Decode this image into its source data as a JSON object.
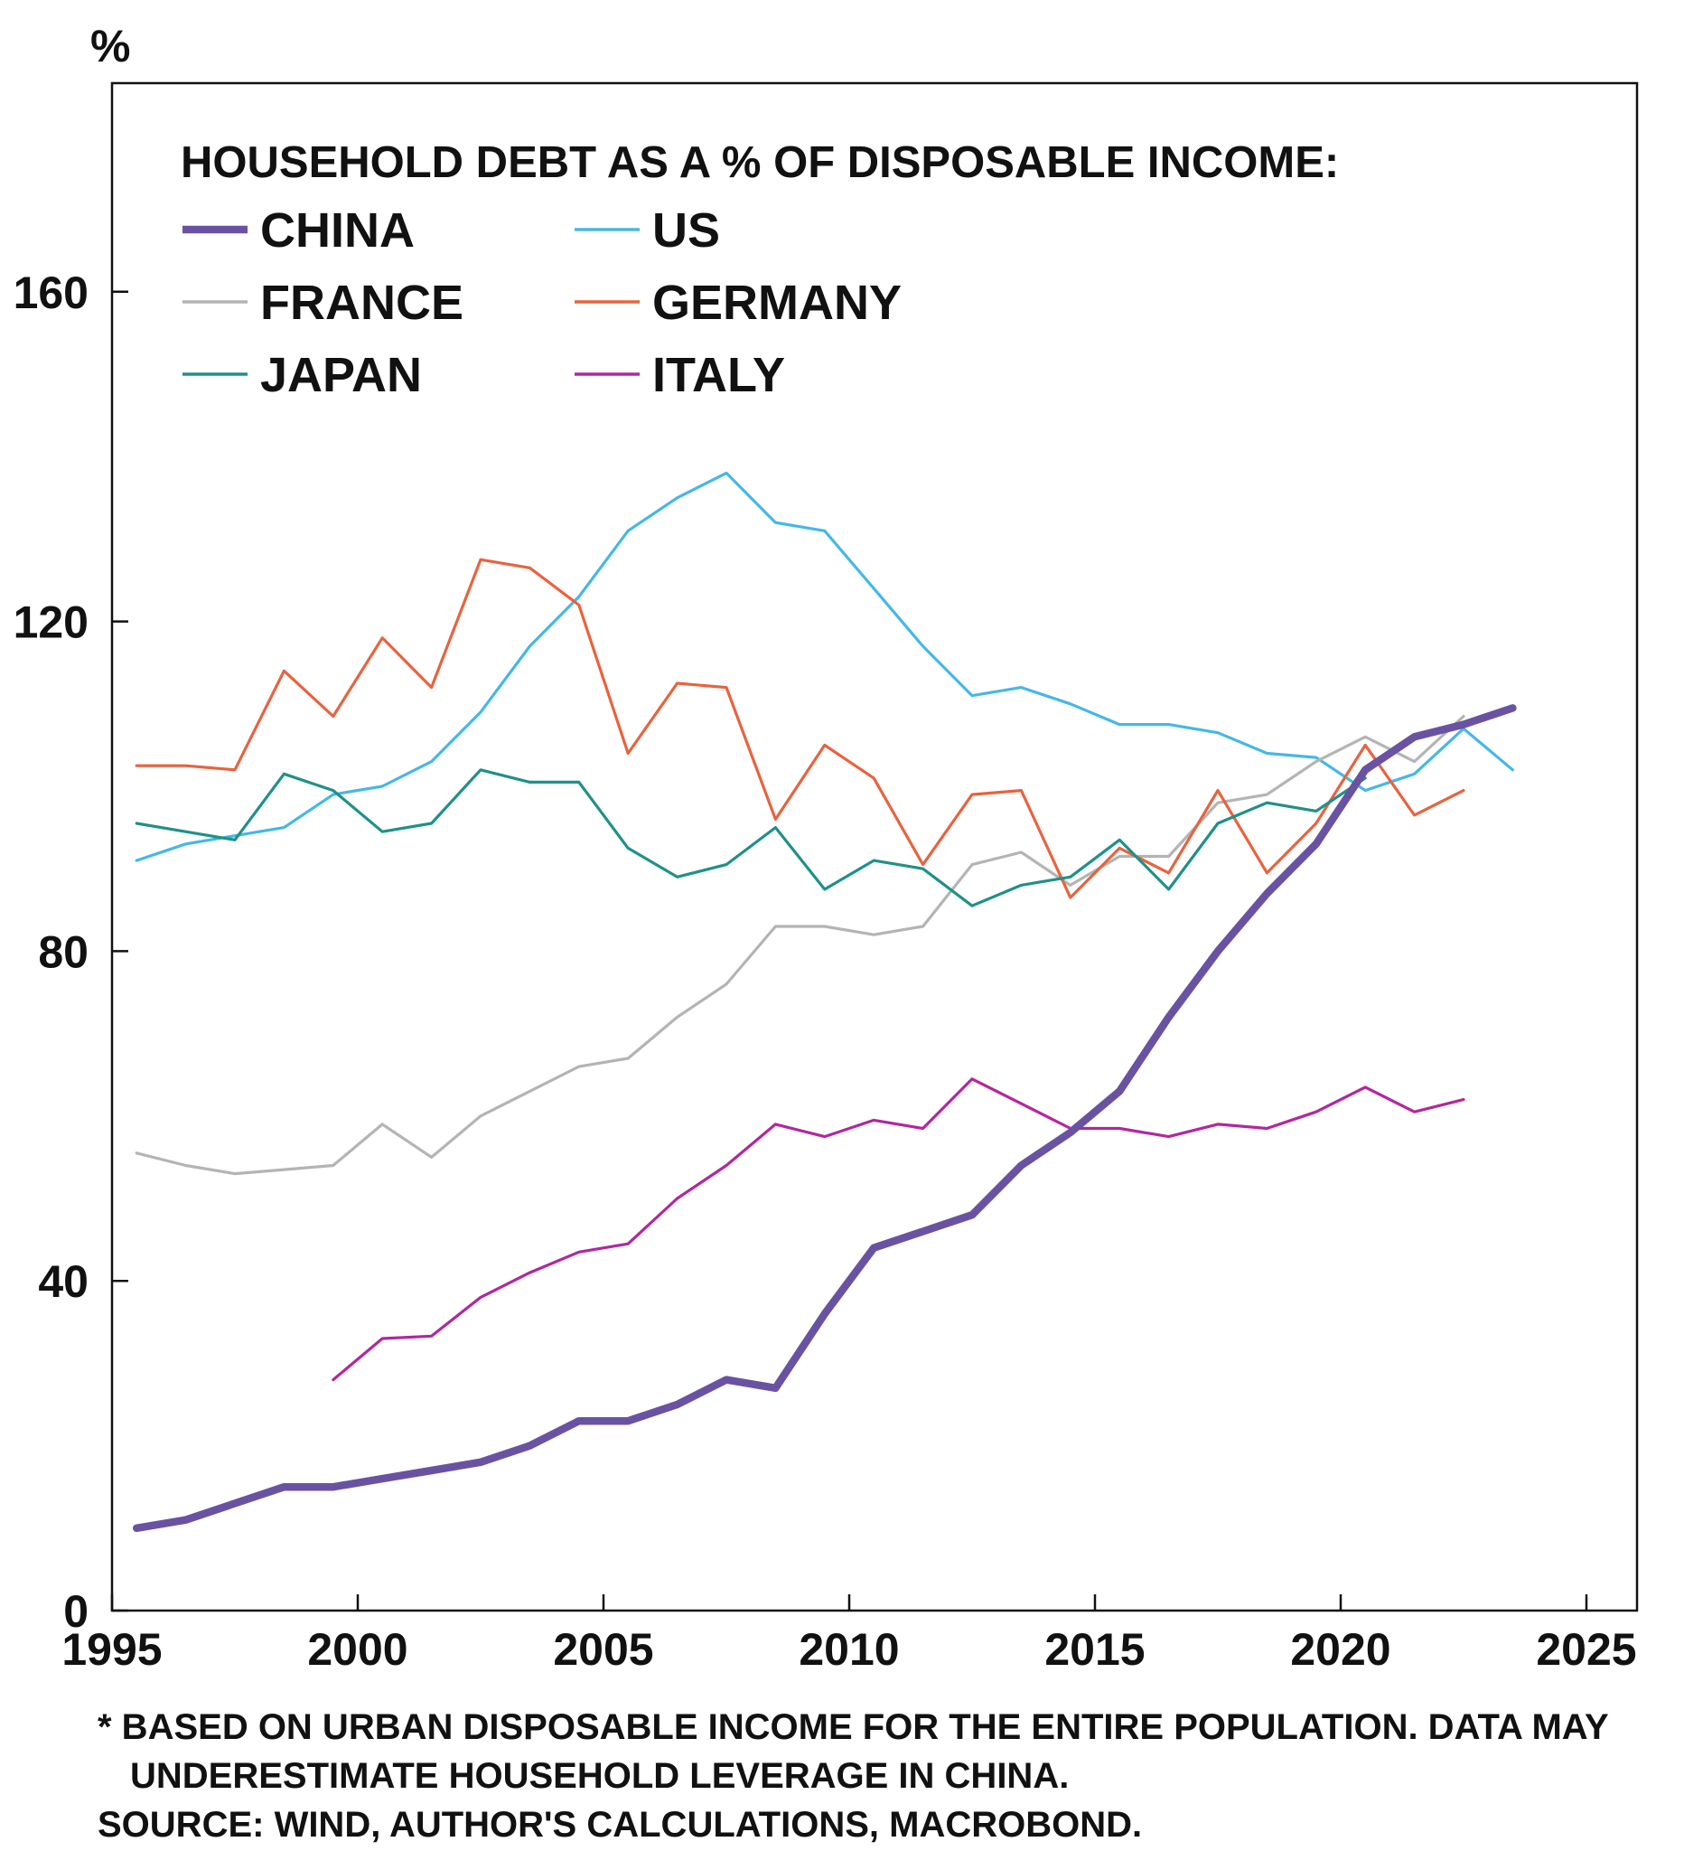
{
  "chart_data": {
    "type": "line",
    "title": "HOUSEHOLD DEBT AS A % OF DISPOSABLE INCOME:",
    "ylabel": "%",
    "xlabel": "",
    "xlim": [
      1995,
      2026
    ],
    "ylim": [
      0,
      180
    ],
    "x_ticks": [
      1995,
      2000,
      2005,
      2010,
      2015,
      2020,
      2025
    ],
    "y_ticks": [
      0,
      40,
      80,
      120,
      160
    ],
    "grid": false,
    "legend_position": "top-left",
    "series": [
      {
        "name": "CHINA",
        "color": "#6a52a3",
        "width": "thick",
        "x": [
          1995.5,
          1996.5,
          1997.5,
          1998.5,
          1999.5,
          2000.5,
          2001.5,
          2002.5,
          2003.5,
          2004.5,
          2005.5,
          2006.5,
          2007.5,
          2008.5,
          2009.5,
          2010.5,
          2011.5,
          2012.5,
          2013.5,
          2014.5,
          2015.5,
          2016.5,
          2017.5,
          2018.5,
          2019.5,
          2020.5,
          2021.5,
          2022.5,
          2023.5
        ],
        "y": [
          10,
          11,
          13,
          15,
          15,
          16,
          17,
          18,
          20,
          23,
          23,
          25,
          28,
          27,
          36,
          44,
          46,
          48,
          54,
          58,
          63,
          72,
          80,
          87,
          93,
          102,
          106,
          107.5,
          109.5
        ]
      },
      {
        "name": "US",
        "color": "#45b8e6",
        "width": "thin",
        "x": [
          1995.5,
          1996.5,
          1997.5,
          1998.5,
          1999.5,
          2000.5,
          2001.5,
          2002.5,
          2003.5,
          2004.5,
          2005.5,
          2006.5,
          2007.5,
          2008.5,
          2009.5,
          2010.5,
          2011.5,
          2012.5,
          2013.5,
          2014.5,
          2015.5,
          2016.5,
          2017.5,
          2018.5,
          2019.5,
          2020.5,
          2021.5,
          2022.5,
          2023.5
        ],
        "y": [
          91,
          93,
          94,
          95,
          99,
          100,
          103,
          109,
          117,
          123,
          131,
          135,
          138,
          132,
          131,
          124,
          117,
          111,
          112,
          110,
          107.5,
          107.5,
          106.5,
          104,
          103.5,
          99.5,
          101.5,
          107,
          102
        ]
      },
      {
        "name": "FRANCE",
        "color": "#b4b4b4",
        "width": "thin",
        "x": [
          1995.5,
          1996.5,
          1997.5,
          1998.5,
          1999.5,
          2000.5,
          2001.5,
          2002.5,
          2003.5,
          2004.5,
          2005.5,
          2006.5,
          2007.5,
          2008.5,
          2009.5,
          2010.5,
          2011.5,
          2012.5,
          2013.5,
          2014.5,
          2015.5,
          2016.5,
          2017.5,
          2018.5,
          2019.5,
          2020.5,
          2021.5,
          2022.5
        ],
        "y": [
          55.5,
          54,
          53,
          53.5,
          54,
          59,
          55,
          60,
          63,
          66,
          67,
          72,
          76,
          83,
          83,
          82,
          83,
          90.5,
          92,
          88,
          91.5,
          91.5,
          98,
          99,
          103,
          106,
          103,
          108.5
        ]
      },
      {
        "name": "GERMANY",
        "color": "#e8633f",
        "width": "thin",
        "x": [
          1995.5,
          1996.5,
          1997.5,
          1998.5,
          1999.5,
          2000.5,
          2001.5,
          2002.5,
          2003.5,
          2004.5,
          2005.5,
          2006.5,
          2007.5,
          2008.5,
          2009.5,
          2010.5,
          2011.5,
          2012.5,
          2013.5,
          2014.5,
          2015.5,
          2016.5,
          2017.5,
          2018.5,
          2019.5,
          2020.5,
          2021.5,
          2022.5
        ],
        "y": [
          102.5,
          102.5,
          102,
          114,
          108.5,
          118,
          112,
          127.5,
          126.5,
          122,
          104,
          112.5,
          112,
          96,
          105,
          101,
          90.5,
          99,
          99.5,
          86.5,
          92.5,
          89.5,
          99.5,
          89.5,
          95.5,
          105,
          96.5,
          99.5
        ]
      },
      {
        "name": "JAPAN",
        "color": "#1f9188",
        "width": "thin",
        "x": [
          1995.5,
          1996.5,
          1997.5,
          1998.5,
          1999.5,
          2000.5,
          2001.5,
          2002.5,
          2003.5,
          2004.5,
          2005.5,
          2006.5,
          2007.5,
          2008.5,
          2009.5,
          2010.5,
          2011.5,
          2012.5,
          2013.5,
          2014.5,
          2015.5,
          2016.5,
          2017.5,
          2018.5,
          2019.5,
          2020.5
        ],
        "y": [
          95.5,
          94.5,
          93.5,
          101.5,
          99.5,
          94.5,
          95.5,
          102,
          100.5,
          100.5,
          92.5,
          89,
          90.5,
          95,
          87.5,
          91,
          90,
          85.5,
          88,
          89,
          93.5,
          87.5,
          95.5,
          98,
          97,
          101
        ]
      },
      {
        "name": "ITALY",
        "color": "#b3279e",
        "width": "thin",
        "x": [
          1999.5,
          2000.5,
          2001.5,
          2002.5,
          2003.5,
          2004.5,
          2005.5,
          2006.5,
          2007.5,
          2008.5,
          2009.5,
          2010.5,
          2011.5,
          2012.5,
          2013.5,
          2014.5,
          2015.5,
          2016.5,
          2017.5,
          2018.5,
          2019.5,
          2020.5,
          2021.5,
          2022.5
        ],
        "y": [
          28,
          33,
          33.3,
          38,
          41,
          43.5,
          44.5,
          50,
          54,
          59,
          57.5,
          59.5,
          58.5,
          64.5,
          61.5,
          58.5,
          58.5,
          57.5,
          59,
          58.5,
          60.5,
          63.5,
          60.5,
          62
        ]
      }
    ]
  },
  "notes": {
    "footnote": "* BASED ON URBAN DISPOSABLE INCOME FOR THE ENTIRE POPULATION. DATA MAY",
    "footnote_2": "UNDERESTIMATE HOUSEHOLD LEVERAGE IN CHINA.",
    "source": "SOURCE: WIND, AUTHOR'S CALCULATIONS, MACROBOND."
  }
}
